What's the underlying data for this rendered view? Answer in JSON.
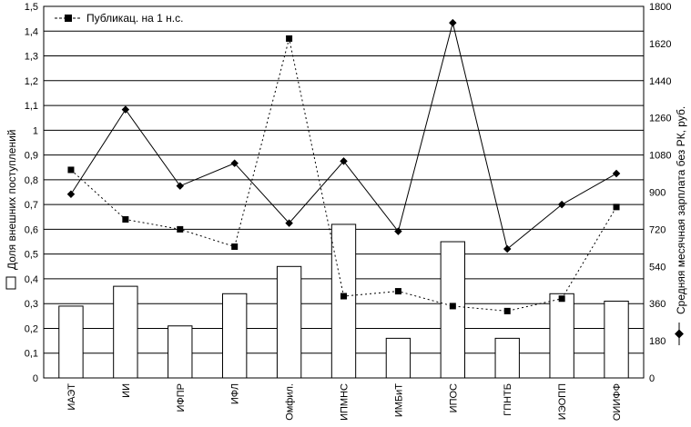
{
  "chart_data": {
    "type": "bar",
    "categories": [
      "ИАЭТ",
      "ИИ",
      "ИФПР",
      "ИФЛ",
      "Омфил.",
      "ИПМНС",
      "ИМБиТ",
      "ИПОС",
      "ГПНТБ",
      "ИЭОПП",
      "ОИИФФ"
    ],
    "y_left": {
      "label": "Доля внешних поступлений",
      "range": [
        0,
        1.5
      ],
      "ticks": [
        "0",
        "0,1",
        "0,2",
        "0,3",
        "0,4",
        "0,5",
        "0,6",
        "0,7",
        "0,8",
        "0,9",
        "1",
        "1,1",
        "1,2",
        "1,3",
        "1,4",
        "1,5"
      ]
    },
    "y_right": {
      "label": "Средняя месячная зарплата без РК,  руб.",
      "range": [
        0,
        1800
      ],
      "ticks": [
        "0",
        "180",
        "360",
        "540",
        "720",
        "900",
        "1080",
        "1260",
        "1440",
        "1620",
        "1800"
      ]
    },
    "series": [
      {
        "name": "Доля внешних поступлений",
        "kind": "bar",
        "axis": "left",
        "values": [
          0.29,
          0.37,
          0.21,
          0.34,
          0.45,
          0.62,
          0.16,
          0.55,
          0.16,
          0.34,
          0.31
        ]
      },
      {
        "name": "Средняя месячная зарплата без РК,  руб.",
        "kind": "line-solid-diamond",
        "axis": "right",
        "values": [
          890,
          1300,
          930,
          1040,
          750,
          1050,
          710,
          1720,
          625,
          840,
          990
        ]
      },
      {
        "name": "Публикац. на 1 н.с.",
        "kind": "line-dotted-square",
        "axis": "left",
        "values": [
          0.84,
          0.64,
          0.6,
          0.53,
          1.37,
          0.33,
          0.35,
          0.29,
          0.27,
          0.32,
          0.69
        ]
      }
    ],
    "legend": {
      "label": "Публикац. на 1 н.с.",
      "placement": "top-left"
    },
    "grid": true
  }
}
